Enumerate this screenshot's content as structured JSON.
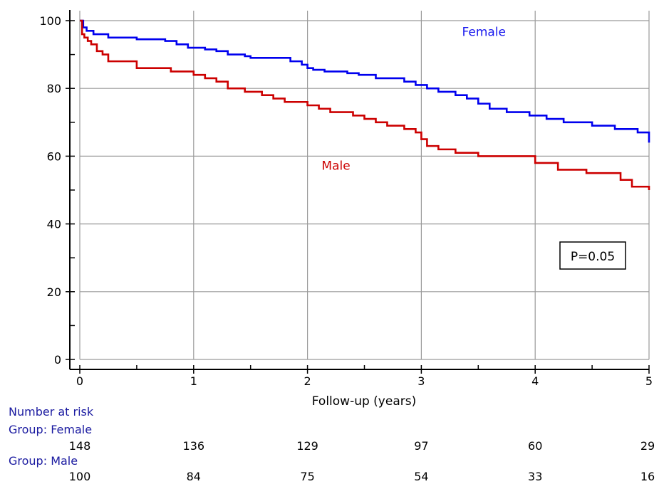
{
  "chart_data": {
    "type": "line",
    "title": "",
    "xlabel": "Follow-up (years)",
    "ylabel": "",
    "xlim": [
      0,
      5
    ],
    "ylim": [
      0,
      100
    ],
    "x_ticks": [
      "0",
      "1",
      "2",
      "3",
      "4",
      "5"
    ],
    "y_ticks": [
      "0",
      "20",
      "40",
      "60",
      "80",
      "100"
    ],
    "grid": true,
    "series": [
      {
        "name": "Female",
        "color": "#0000ee",
        "x": [
          0,
          0.03,
          0.06,
          0.12,
          0.25,
          0.5,
          0.75,
          0.85,
          0.95,
          1.1,
          1.2,
          1.3,
          1.45,
          1.5,
          1.85,
          1.95,
          2.0,
          2.05,
          2.15,
          2.35,
          2.45,
          2.6,
          2.85,
          2.95,
          3.05,
          3.15,
          3.3,
          3.4,
          3.5,
          3.6,
          3.75,
          3.95,
          4.1,
          4.25,
          4.5,
          4.7,
          4.9,
          5.0
        ],
        "y": [
          100,
          98,
          97,
          96,
          95,
          94.5,
          94,
          93,
          92,
          91.5,
          91,
          90,
          89.5,
          89,
          88,
          87,
          86,
          85.5,
          85,
          84.5,
          84,
          83,
          82,
          81,
          80,
          79,
          78,
          77,
          75.5,
          74,
          73,
          72,
          71,
          70,
          69,
          68,
          67,
          64
        ]
      },
      {
        "name": "Male",
        "color": "#cc0000",
        "x": [
          0,
          0.02,
          0.04,
          0.07,
          0.1,
          0.15,
          0.2,
          0.25,
          0.5,
          0.8,
          1.0,
          1.1,
          1.2,
          1.3,
          1.45,
          1.6,
          1.7,
          1.8,
          2.0,
          2.1,
          2.2,
          2.4,
          2.5,
          2.6,
          2.7,
          2.85,
          2.95,
          3.0,
          3.05,
          3.15,
          3.3,
          3.5,
          4.0,
          4.2,
          4.45,
          4.75,
          4.85,
          5.0
        ],
        "y": [
          100,
          96,
          95,
          94,
          93,
          91,
          90,
          88,
          86,
          85,
          84,
          83,
          82,
          80,
          79,
          78,
          77,
          76,
          75,
          74,
          73,
          72,
          71,
          70,
          69,
          68,
          67,
          65,
          63,
          62,
          61,
          60,
          58,
          56,
          55,
          53,
          51,
          50
        ]
      }
    ],
    "annotations": [
      {
        "text": "Female",
        "color": "#1a1aee",
        "x": 3.55,
        "y": 95.5
      },
      {
        "text": "Male",
        "color": "#cc0000",
        "x": 2.25,
        "y": 56
      }
    ],
    "pvalue": "P=0.05",
    "number_at_risk": {
      "title": "Number at risk",
      "times": [
        0,
        1,
        2,
        3,
        4,
        5
      ],
      "groups": [
        {
          "label": "Group: Female",
          "values": [
            "148",
            "136",
            "129",
            "97",
            "60",
            "29"
          ]
        },
        {
          "label": "Group: Male",
          "values": [
            "100",
            "84",
            "75",
            "54",
            "33",
            "16"
          ]
        }
      ]
    }
  }
}
